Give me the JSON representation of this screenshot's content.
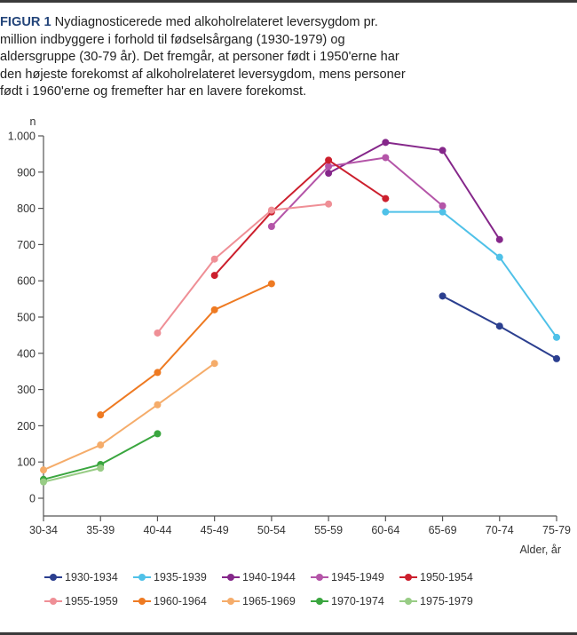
{
  "caption": {
    "label": "FIGUR 1",
    "text": " Nydiagnosticerede med alkoholrelateret leversygdom pr. million indbyggere i forhold til fødselsårgang (1930-1979) og aldersgruppe (30-79 år). Det fremgår, at personer født i 1950'erne har den højeste forekomst af alkoholrelateret leversygdom, mens personer født i 1960'erne og fremefter har en lavere forekomst."
  },
  "chart_data": {
    "type": "line",
    "title": "Nydiagnosticerede med alkoholrelateret leversygdom pr. million indbyggere",
    "xlabel": "Alder, år",
    "ylabel": "n",
    "categories": [
      "30-34",
      "35-39",
      "40-44",
      "45-49",
      "50-54",
      "55-59",
      "60-64",
      "65-69",
      "70-74",
      "75-79"
    ],
    "yticks": [
      0,
      100,
      200,
      300,
      400,
      500,
      600,
      700,
      800,
      900,
      1000
    ],
    "ytick_labels": [
      "0",
      "100",
      "200",
      "300",
      "400",
      "500",
      "600",
      "700",
      "800",
      "900",
      "1.000"
    ],
    "ylim": [
      -50,
      1000
    ],
    "grid": false,
    "legend_position": "bottom",
    "series": [
      {
        "name": "1930-1934",
        "color": "#2b3f8f",
        "values": [
          null,
          null,
          null,
          null,
          null,
          null,
          null,
          558,
          475,
          385
        ]
      },
      {
        "name": "1935-1939",
        "color": "#4fc1e8",
        "values": [
          null,
          null,
          null,
          null,
          null,
          null,
          790,
          790,
          665,
          444
        ]
      },
      {
        "name": "1940-1944",
        "color": "#85278a",
        "values": [
          null,
          null,
          null,
          null,
          null,
          897,
          982,
          960,
          714,
          null
        ]
      },
      {
        "name": "1945-1949",
        "color": "#b455a8",
        "values": [
          null,
          null,
          null,
          null,
          750,
          916,
          940,
          807,
          null,
          null
        ]
      },
      {
        "name": "1950-1954",
        "color": "#cc1f2d",
        "values": [
          null,
          null,
          null,
          615,
          790,
          933,
          827,
          null,
          null,
          null
        ]
      },
      {
        "name": "1955-1959",
        "color": "#ef8f96",
        "values": [
          null,
          null,
          456,
          660,
          795,
          812,
          null,
          null,
          null,
          null
        ]
      },
      {
        "name": "1960-1964",
        "color": "#ee7a22",
        "values": [
          null,
          230,
          347,
          520,
          592,
          null,
          null,
          null,
          null,
          null
        ]
      },
      {
        "name": "1965-1969",
        "color": "#f5ac6a",
        "values": [
          78,
          147,
          258,
          372,
          null,
          null,
          null,
          null,
          null,
          null
        ]
      },
      {
        "name": "1970-1974",
        "color": "#3aa63f",
        "values": [
          52,
          93,
          178,
          null,
          null,
          null,
          null,
          null,
          null,
          null
        ]
      },
      {
        "name": "1975-1979",
        "color": "#98cc85",
        "values": [
          45,
          83,
          null,
          null,
          null,
          null,
          null,
          null,
          null,
          null
        ]
      }
    ]
  }
}
